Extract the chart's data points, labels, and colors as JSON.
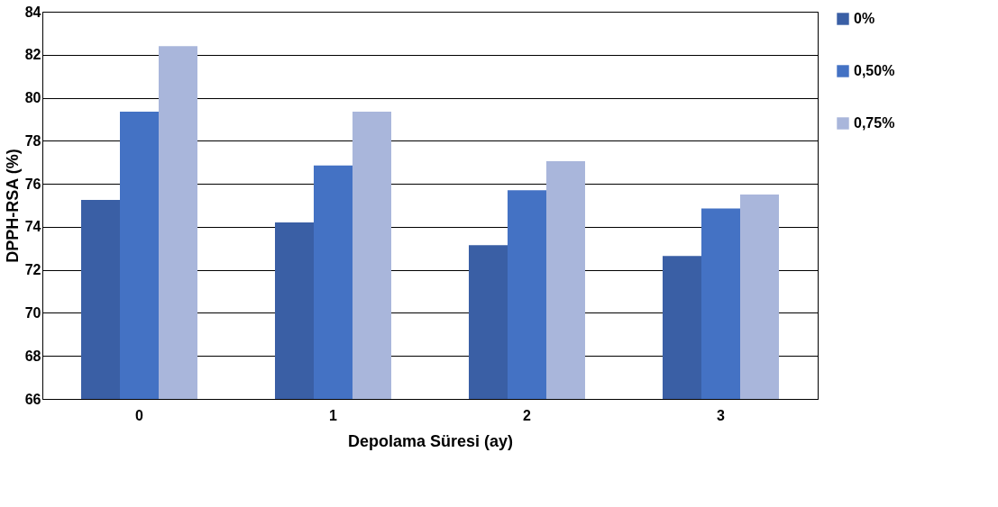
{
  "chart_data": {
    "type": "bar",
    "xlabel": "Depolama Süresi (ay)",
    "ylabel": "DPPH-RSA (%)",
    "categories": [
      "0",
      "1",
      "2",
      "3"
    ],
    "series": [
      {
        "name": "0%",
        "color": "#3a5fa5",
        "values": [
          75.25,
          74.2,
          73.15,
          72.65
        ]
      },
      {
        "name": "0,50%",
        "color": "#4472c4",
        "values": [
          79.35,
          76.85,
          75.7,
          74.85
        ]
      },
      {
        "name": "0,75%",
        "color": "#a9b6db",
        "values": [
          82.4,
          79.35,
          77.05,
          75.5
        ]
      }
    ],
    "ylim": [
      66,
      84
    ],
    "yticks": [
      66,
      68,
      70,
      72,
      74,
      76,
      78,
      80,
      82,
      84
    ],
    "grid": "y",
    "legend": "right"
  }
}
